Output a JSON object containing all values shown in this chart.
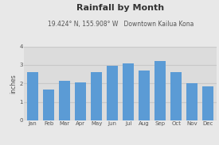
{
  "title": "Rainfall by Month",
  "subtitle": "19.424° N, 155.908° W   Downtown Kailua Kona",
  "ylabel": "inches",
  "months": [
    "Jan",
    "Feb",
    "Mar",
    "Apr",
    "May",
    "Jun",
    "Jul",
    "Aug",
    "Sep",
    "Oct",
    "Nov",
    "Dec"
  ],
  "values": [
    2.6,
    1.65,
    2.15,
    2.05,
    2.6,
    2.95,
    3.1,
    2.7,
    3.2,
    2.6,
    2.0,
    1.85
  ],
  "bar_color": "#5b9bd5",
  "ylim": [
    0,
    4
  ],
  "yticks": [
    0,
    1,
    2,
    3,
    4
  ],
  "background_color": "#e8e8e8",
  "plot_bg_color": "#dcdcdc",
  "grid_color": "#c8c8c8",
  "title_fontsize": 8,
  "subtitle_fontsize": 5.5,
  "tick_fontsize": 5,
  "ylabel_fontsize": 5.5,
  "title_color": "#333333",
  "subtitle_color": "#555555",
  "tick_color": "#555555"
}
